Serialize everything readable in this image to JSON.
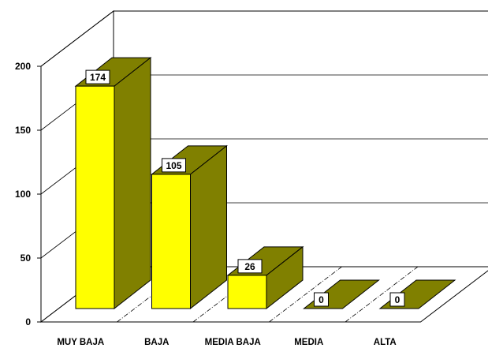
{
  "chart_data": {
    "type": "bar",
    "title": "",
    "xlabel": "",
    "ylabel": "",
    "categories": [
      "MUY BAJA",
      "BAJA",
      "MEDIA BAJA",
      "MEDIA",
      "ALTA"
    ],
    "values": [
      174,
      105,
      26,
      0,
      0
    ],
    "ylim": [
      0,
      200
    ],
    "yticks": [
      0,
      50,
      100,
      150,
      200
    ],
    "grid": true,
    "three_d": true,
    "colors": {
      "bar_front": "#ffff00",
      "bar_side": "#808000",
      "bar_top": "#808000",
      "outline": "#000000",
      "grid": "#000000",
      "label_box": "#ffffff"
    }
  }
}
